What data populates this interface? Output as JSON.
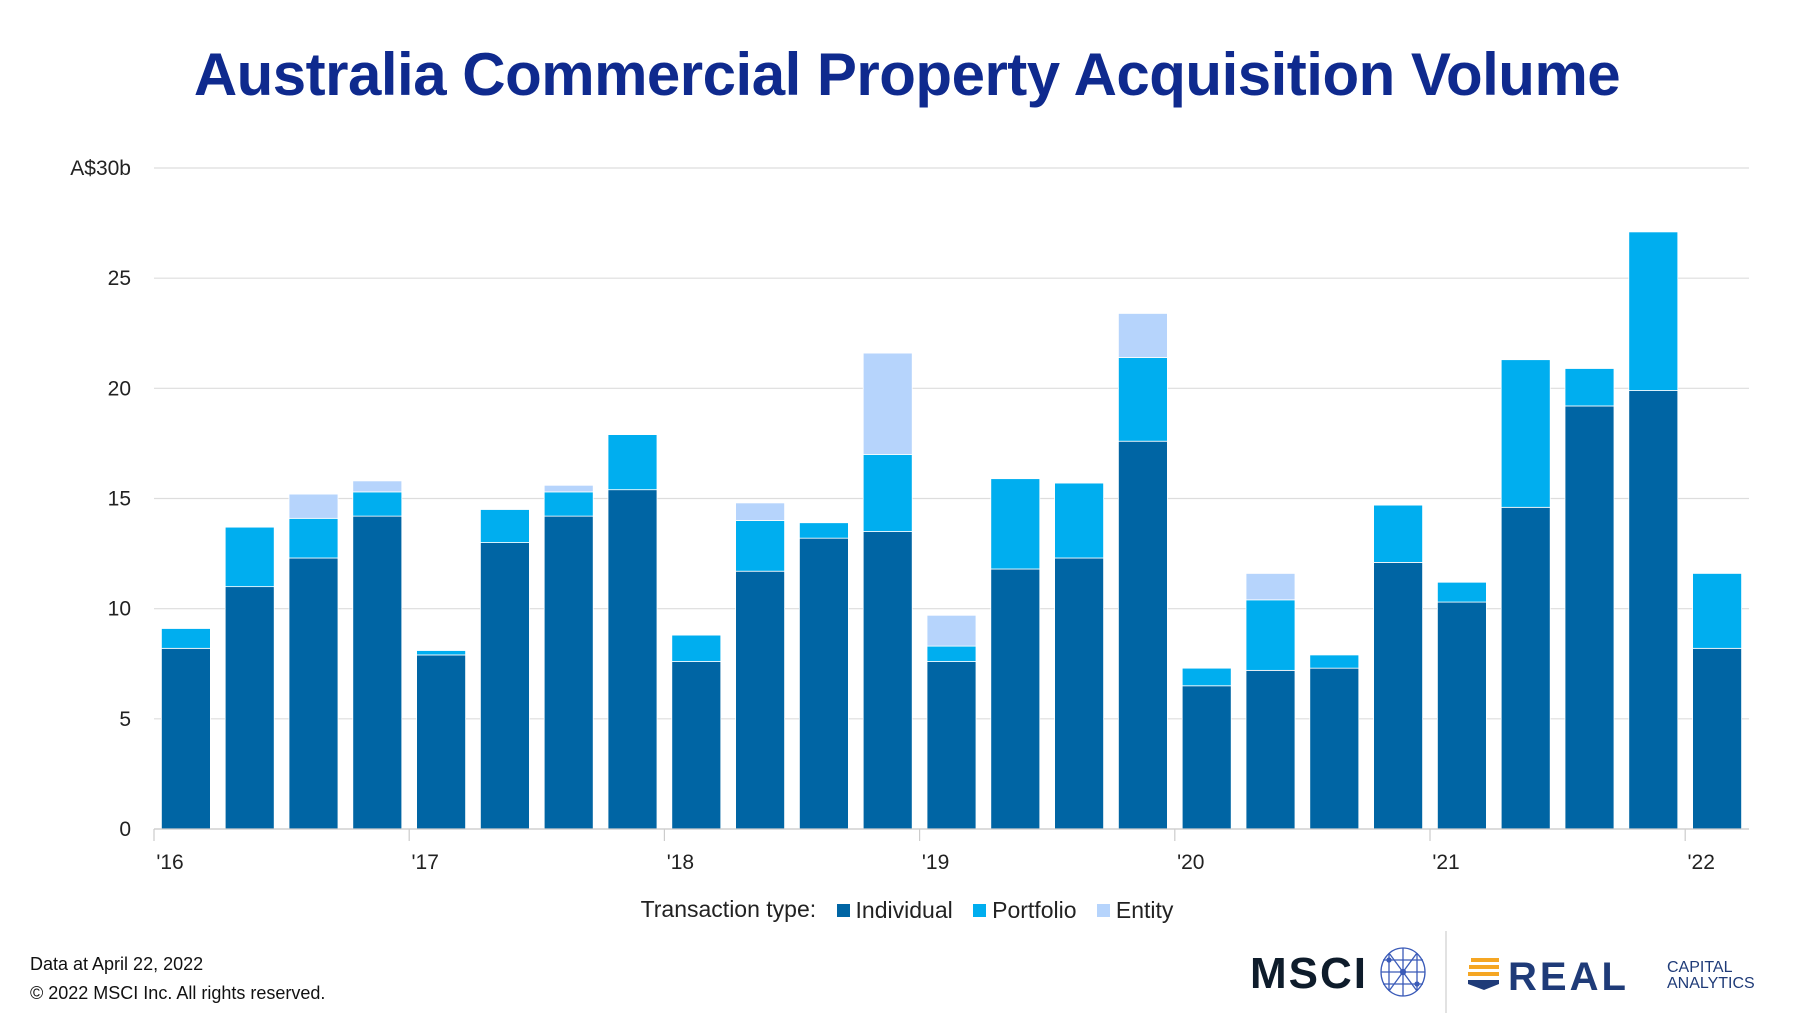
{
  "chart_data": {
    "type": "bar",
    "stacked": true,
    "title": "Australia Commercial Property Acquisition Volume",
    "xlabel": "",
    "ylabel": "",
    "ylim": [
      0,
      30
    ],
    "yticks": [
      "0",
      "5",
      "10",
      "15",
      "20",
      "25",
      "A$30b"
    ],
    "ytick_values": [
      0,
      5,
      10,
      15,
      20,
      25,
      30
    ],
    "grid": true,
    "x_tick_labels": [
      "'16",
      "'17",
      "'18",
      "'19",
      "'20",
      "'21",
      "'22"
    ],
    "categories": [
      "Q1 2016",
      "Q2 2016",
      "Q3 2016",
      "Q4 2016",
      "Q1 2017",
      "Q2 2017",
      "Q3 2017",
      "Q4 2017",
      "Q1 2018",
      "Q2 2018",
      "Q3 2018",
      "Q4 2018",
      "Q1 2019",
      "Q2 2019",
      "Q3 2019",
      "Q4 2019",
      "Q1 2020",
      "Q2 2020",
      "Q3 2020",
      "Q4 2020",
      "Q1 2021",
      "Q2 2021",
      "Q3 2021",
      "Q4 2021",
      "Q1 2022"
    ],
    "legend_title": "Transaction type:",
    "legend_placement": "bottom",
    "series": [
      {
        "name": "Individual",
        "color": "#0065a4",
        "values": [
          8.2,
          11.0,
          12.3,
          14.2,
          7.9,
          13.0,
          14.2,
          15.4,
          7.6,
          11.7,
          13.2,
          13.5,
          7.6,
          11.8,
          12.3,
          17.6,
          6.5,
          7.2,
          7.3,
          12.1,
          10.3,
          14.6,
          19.2,
          19.9,
          8.2
        ]
      },
      {
        "name": "Portfolio",
        "color": "#00aeef",
        "values": [
          0.9,
          2.7,
          1.8,
          1.1,
          0.2,
          1.5,
          1.1,
          2.5,
          1.2,
          2.3,
          0.7,
          3.5,
          0.7,
          4.1,
          3.4,
          3.8,
          0.8,
          3.2,
          0.6,
          2.6,
          0.9,
          6.7,
          1.7,
          7.2,
          3.4
        ]
      },
      {
        "name": "Entity",
        "color": "#b6d4fc",
        "values": [
          0,
          0,
          1.1,
          0.5,
          0,
          0,
          0.3,
          0,
          0,
          0.8,
          0,
          4.6,
          1.4,
          0,
          0,
          2.0,
          0,
          1.2,
          0,
          0,
          0,
          0,
          0,
          0,
          0
        ]
      }
    ]
  },
  "footer": {
    "data_date": "Data at April 22, 2022",
    "copyright": "© 2022 MSCI Inc. All rights reserved."
  },
  "logos": {
    "msci": "MSCI",
    "rca_main": "REAL",
    "rca_line1": "CAPITAL",
    "rca_line2": "ANALYTICS"
  },
  "colors": {
    "title": "#0f2a8e",
    "grid": "#dddddd"
  }
}
